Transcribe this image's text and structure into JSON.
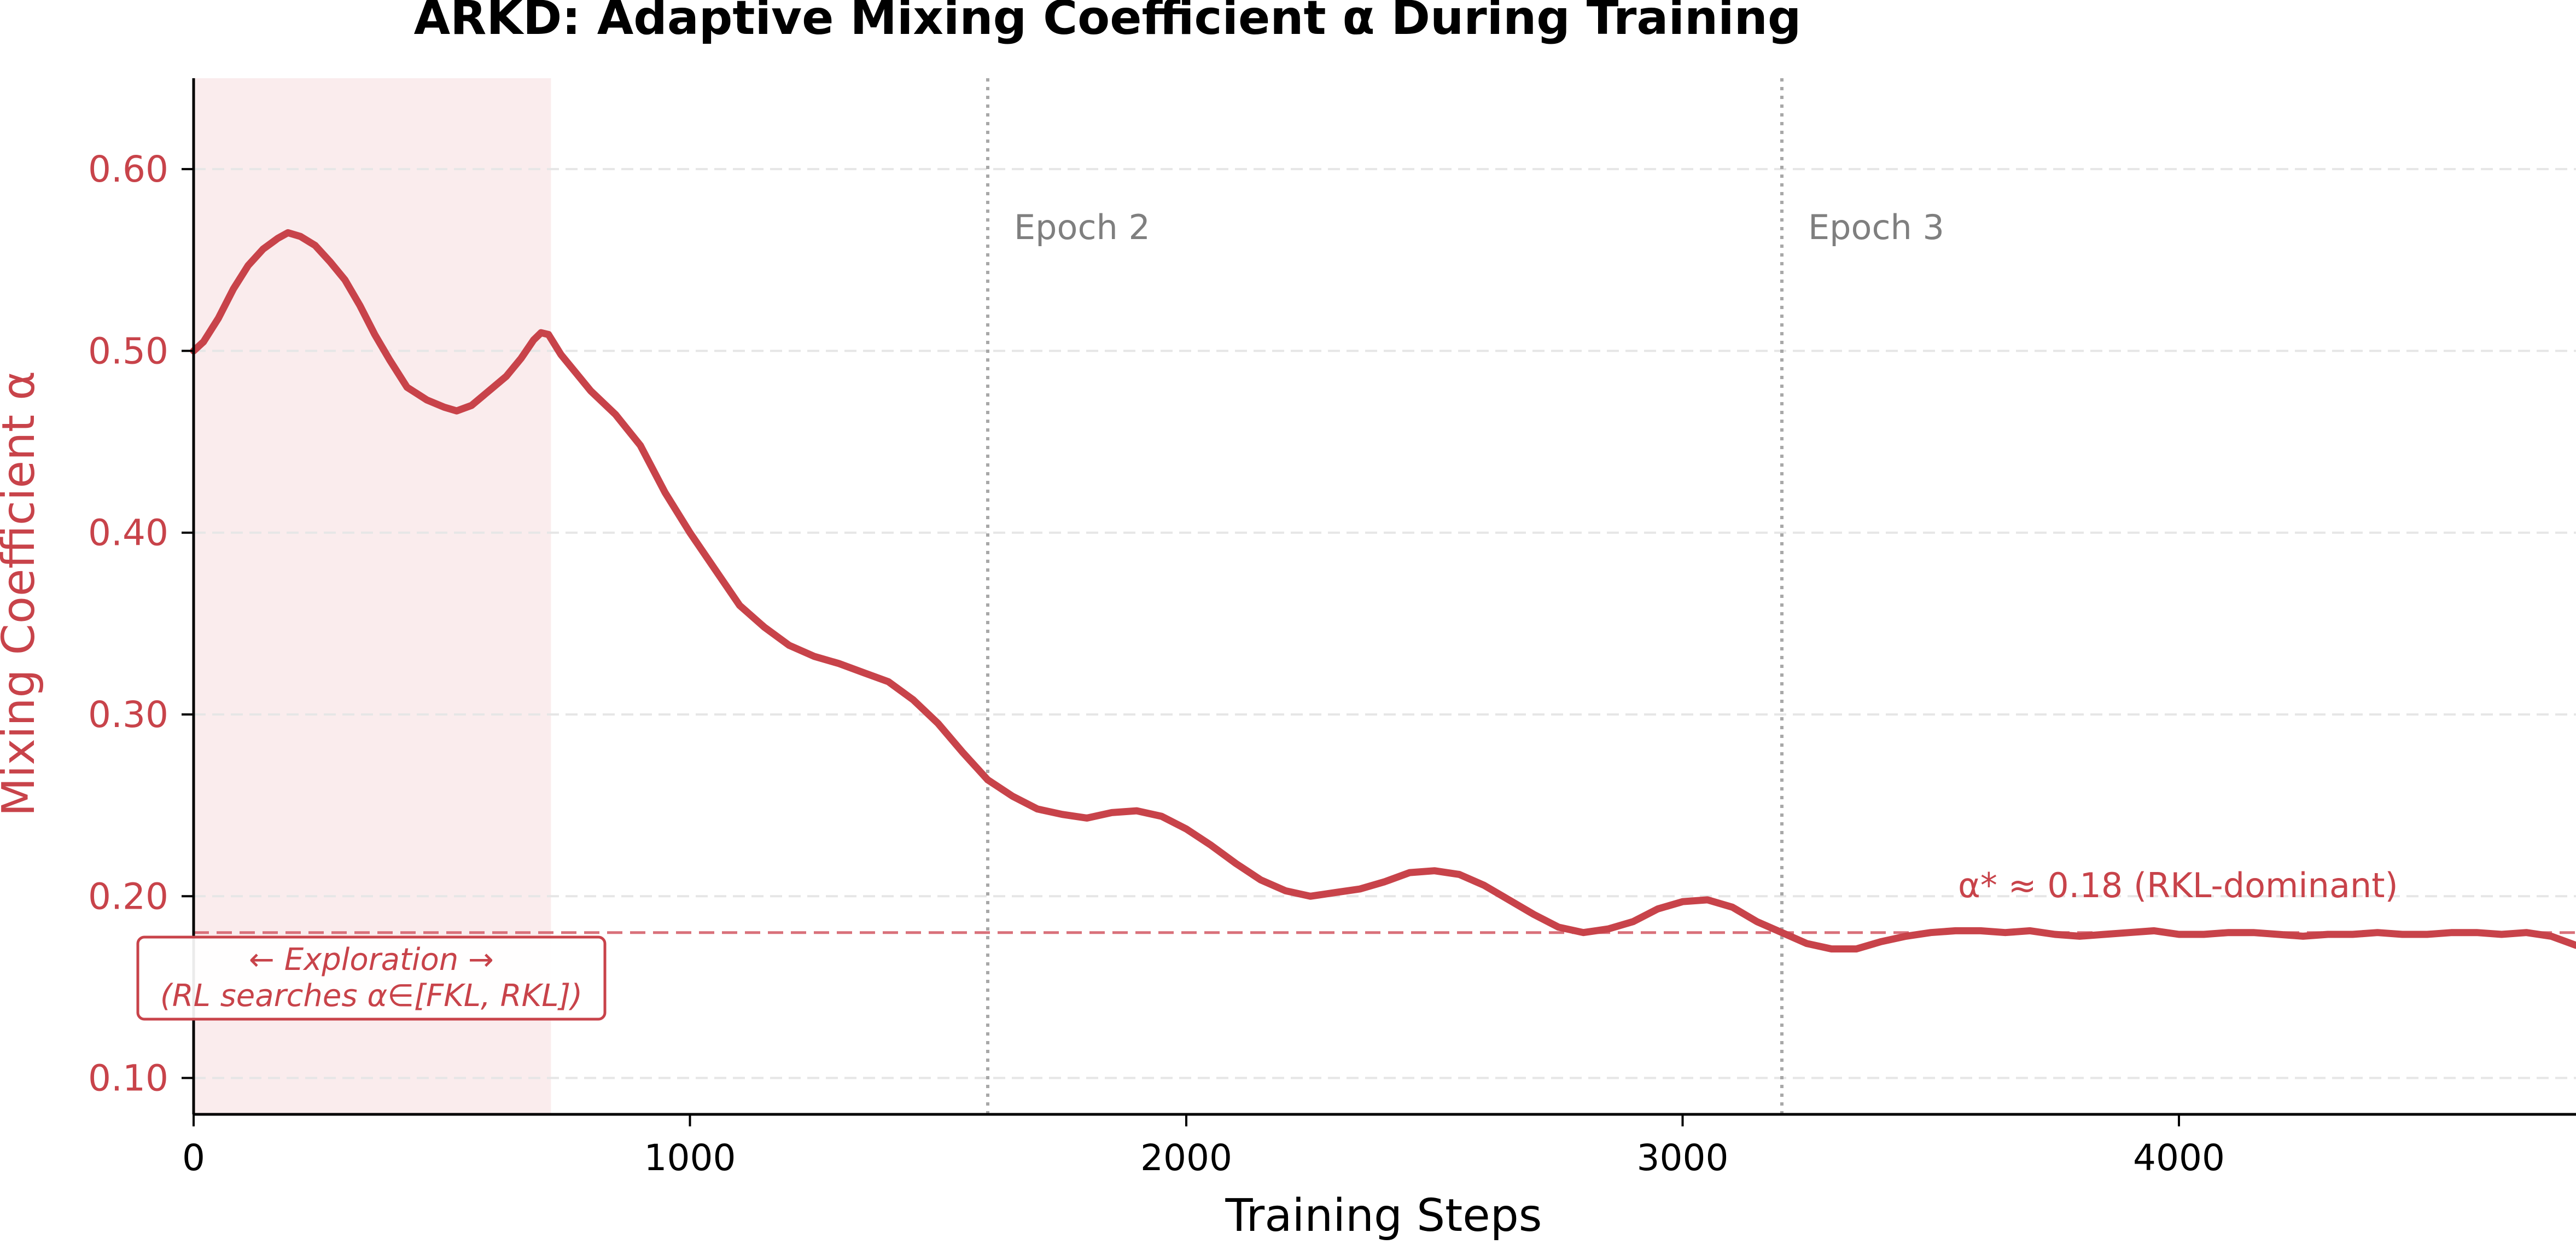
{
  "chart_data": {
    "type": "line",
    "title": "ARKD: Adaptive Mixing Coefficient α During Training",
    "xlabel": "Training Steps",
    "ylabel": "Mixing Coefficient  α",
    "xlim": [
      0,
      4800
    ],
    "ylim": [
      0.08,
      0.65
    ],
    "x_ticks": [
      0,
      1000,
      2000,
      3000,
      4000
    ],
    "x_tick_labels": [
      "0",
      "1000",
      "2000",
      "3000",
      "4000"
    ],
    "y_ticks": [
      0.1,
      0.2,
      0.3,
      0.4,
      0.5,
      0.6
    ],
    "y_tick_labels": [
      "0.10",
      "0.20",
      "0.30",
      "0.40",
      "0.50",
      "0.60"
    ],
    "grid": "y-dashed",
    "series": [
      {
        "color": "#c8434a",
        "points": [
          [
            0,
            0.5
          ],
          [
            20,
            0.505
          ],
          [
            50,
            0.518
          ],
          [
            80,
            0.534
          ],
          [
            110,
            0.547
          ],
          [
            140,
            0.556
          ],
          [
            170,
            0.562
          ],
          [
            190,
            0.565
          ],
          [
            215,
            0.563
          ],
          [
            245,
            0.558
          ],
          [
            275,
            0.549
          ],
          [
            305,
            0.539
          ],
          [
            335,
            0.525
          ],
          [
            365,
            0.509
          ],
          [
            395,
            0.495
          ],
          [
            430,
            0.48
          ],
          [
            470,
            0.473
          ],
          [
            505,
            0.469
          ],
          [
            530,
            0.467
          ],
          [
            560,
            0.47
          ],
          [
            595,
            0.478
          ],
          [
            630,
            0.486
          ],
          [
            660,
            0.496
          ],
          [
            685,
            0.506
          ],
          [
            700,
            0.51
          ],
          [
            715,
            0.509
          ],
          [
            740,
            0.498
          ],
          [
            770,
            0.488
          ],
          [
            800,
            0.478
          ],
          [
            850,
            0.465
          ],
          [
            900,
            0.448
          ],
          [
            950,
            0.422
          ],
          [
            1000,
            0.4
          ],
          [
            1050,
            0.38
          ],
          [
            1100,
            0.36
          ],
          [
            1150,
            0.348
          ],
          [
            1200,
            0.338
          ],
          [
            1250,
            0.332
          ],
          [
            1300,
            0.328
          ],
          [
            1350,
            0.323
          ],
          [
            1400,
            0.318
          ],
          [
            1450,
            0.308
          ],
          [
            1500,
            0.295
          ],
          [
            1550,
            0.279
          ],
          [
            1600,
            0.264
          ],
          [
            1650,
            0.255
          ],
          [
            1700,
            0.248
          ],
          [
            1750,
            0.245
          ],
          [
            1800,
            0.243
          ],
          [
            1850,
            0.246
          ],
          [
            1900,
            0.247
          ],
          [
            1950,
            0.244
          ],
          [
            2000,
            0.237
          ],
          [
            2050,
            0.228
          ],
          [
            2100,
            0.218
          ],
          [
            2150,
            0.209
          ],
          [
            2200,
            0.203
          ],
          [
            2250,
            0.2
          ],
          [
            2300,
            0.202
          ],
          [
            2350,
            0.204
          ],
          [
            2400,
            0.208
          ],
          [
            2450,
            0.213
          ],
          [
            2500,
            0.214
          ],
          [
            2550,
            0.212
          ],
          [
            2600,
            0.206
          ],
          [
            2650,
            0.198
          ],
          [
            2700,
            0.19
          ],
          [
            2750,
            0.183
          ],
          [
            2800,
            0.18
          ],
          [
            2850,
            0.182
          ],
          [
            2900,
            0.186
          ],
          [
            2950,
            0.193
          ],
          [
            3000,
            0.197
          ],
          [
            3050,
            0.198
          ],
          [
            3100,
            0.194
          ],
          [
            3150,
            0.186
          ],
          [
            3200,
            0.18
          ],
          [
            3250,
            0.174
          ],
          [
            3300,
            0.171
          ],
          [
            3350,
            0.171
          ],
          [
            3400,
            0.175
          ],
          [
            3450,
            0.178
          ],
          [
            3500,
            0.18
          ],
          [
            3550,
            0.181
          ],
          [
            3600,
            0.181
          ],
          [
            3650,
            0.18
          ],
          [
            3700,
            0.181
          ],
          [
            3750,
            0.179
          ],
          [
            3800,
            0.178
          ],
          [
            3850,
            0.179
          ],
          [
            3900,
            0.18
          ],
          [
            3950,
            0.181
          ],
          [
            4000,
            0.179
          ],
          [
            4050,
            0.179
          ],
          [
            4100,
            0.18
          ],
          [
            4150,
            0.18
          ],
          [
            4200,
            0.179
          ],
          [
            4250,
            0.178
          ],
          [
            4300,
            0.179
          ],
          [
            4350,
            0.179
          ],
          [
            4400,
            0.18
          ],
          [
            4450,
            0.179
          ],
          [
            4500,
            0.179
          ],
          [
            4550,
            0.18
          ],
          [
            4600,
            0.18
          ],
          [
            4650,
            0.179
          ],
          [
            4700,
            0.18
          ],
          [
            4750,
            0.178
          ],
          [
            4800,
            0.173
          ]
        ]
      }
    ],
    "reference_line": {
      "y": 0.18,
      "color": "#d9707a",
      "style": "dashed",
      "label": "α* ≈ 0.18  (RKL-dominant)"
    },
    "vertical_lines": [
      {
        "x": 1600,
        "label": "Epoch 2",
        "color": "#a8a8a8",
        "style": "dotted"
      },
      {
        "x": 3200,
        "label": "Epoch 3",
        "color": "#a8a8a8",
        "style": "dotted"
      }
    ],
    "shaded_region": {
      "x_start": 0,
      "x_end": 720,
      "color": "#f4d5d6",
      "label_line1": "← Exploration →",
      "label_line2": "(RL searches α∈[FKL, RKL])"
    },
    "colors": {
      "series": "#c8434a",
      "ylabel": "#c8434a",
      "ytick": "#c8434a",
      "grid": "#e6e6e6",
      "axis": "#000000"
    }
  }
}
